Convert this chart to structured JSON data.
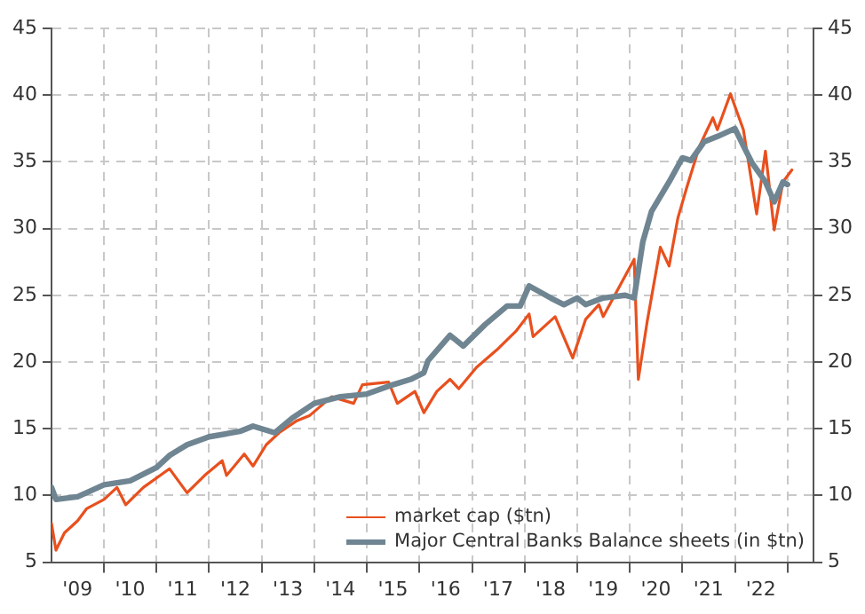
{
  "chart_data": {
    "type": "line",
    "xlim": [
      "2009-01-01",
      "2023-07-01"
    ],
    "xticks": [
      {
        "value": "2009-07-01",
        "label": "'09"
      },
      {
        "value": "2010-01-01",
        "label": null
      },
      {
        "value": "2010-07-01",
        "label": "'10"
      },
      {
        "value": "2011-01-01",
        "label": null
      },
      {
        "value": "2011-07-01",
        "label": "'11"
      },
      {
        "value": "2012-01-01",
        "label": null
      },
      {
        "value": "2012-07-01",
        "label": "'12"
      },
      {
        "value": "2013-01-01",
        "label": null
      },
      {
        "value": "2013-07-01",
        "label": "'13"
      },
      {
        "value": "2014-01-01",
        "label": null
      },
      {
        "value": "2014-07-01",
        "label": "'14"
      },
      {
        "value": "2015-01-01",
        "label": null
      },
      {
        "value": "2015-07-01",
        "label": "'15"
      },
      {
        "value": "2016-01-01",
        "label": null
      },
      {
        "value": "2016-07-01",
        "label": "'16"
      },
      {
        "value": "2017-01-01",
        "label": null
      },
      {
        "value": "2017-07-01",
        "label": "'17"
      },
      {
        "value": "2018-01-01",
        "label": null
      },
      {
        "value": "2018-07-01",
        "label": "'18"
      },
      {
        "value": "2019-01-01",
        "label": null
      },
      {
        "value": "2019-07-01",
        "label": "'19"
      },
      {
        "value": "2020-01-01",
        "label": null
      },
      {
        "value": "2020-07-01",
        "label": "'20"
      },
      {
        "value": "2021-01-01",
        "label": null
      },
      {
        "value": "2021-07-01",
        "label": "'21"
      },
      {
        "value": "2022-01-01",
        "label": null
      },
      {
        "value": "2022-07-01",
        "label": "'22"
      },
      {
        "value": "2023-01-01",
        "label": null
      }
    ],
    "ylim": [
      5,
      45
    ],
    "yticks": [
      5,
      10,
      15,
      20,
      25,
      30,
      35,
      40,
      45
    ],
    "y2lim": [
      5,
      45
    ],
    "y2ticks": [
      5,
      10,
      15,
      20,
      25,
      30,
      35,
      40,
      45
    ],
    "grid": true,
    "legend": "bottom right",
    "marker": "none",
    "line_style": "solid",
    "series": [
      {
        "name": "market cap ($tn)",
        "color": "#e8501e",
        "x": [
          "2009-01",
          "2009-02",
          "2009-04",
          "2009-07",
          "2009-09",
          "2010-01",
          "2010-04",
          "2010-06",
          "2010-10",
          "2011-04",
          "2011-08",
          "2011-12",
          "2012-04",
          "2012-05",
          "2012-09",
          "2012-11",
          "2013-02",
          "2013-05",
          "2013-09",
          "2013-12",
          "2014-05",
          "2014-10",
          "2014-12",
          "2015-06",
          "2015-08",
          "2015-12",
          "2016-02",
          "2016-05",
          "2016-08",
          "2016-10",
          "2017-02",
          "2017-07",
          "2017-11",
          "2018-02",
          "2018-03",
          "2018-08",
          "2018-12",
          "2019-03",
          "2019-06",
          "2019-07",
          "2020-02",
          "2020-03",
          "2020-05",
          "2020-08",
          "2020-10",
          "2020-12",
          "2021-02",
          "2021-05",
          "2021-08",
          "2021-09",
          "2021-12",
          "2022-03",
          "2022-06",
          "2022-08",
          "2022-10",
          "2022-12",
          "2023-02"
        ],
        "values": [
          7.9,
          5.9,
          7.2,
          8.1,
          9.0,
          9.7,
          10.6,
          9.3,
          10.6,
          12.0,
          10.2,
          11.5,
          12.6,
          11.5,
          13.1,
          12.2,
          13.8,
          14.7,
          15.6,
          16.0,
          17.4,
          16.9,
          18.3,
          18.5,
          16.9,
          17.8,
          16.2,
          17.8,
          18.7,
          18.0,
          19.6,
          21.0,
          22.3,
          23.6,
          21.9,
          23.4,
          20.3,
          23.2,
          24.3,
          23.4,
          27.7,
          18.7,
          23.0,
          28.6,
          27.2,
          30.8,
          33.1,
          36.2,
          38.3,
          37.4,
          40.1,
          37.4,
          31.1,
          35.8,
          29.9,
          33.5,
          34.4
        ]
      },
      {
        "name": "Major Central Banks Balance sheets (in $tn)",
        "color": "#6f8592",
        "x": [
          "2009-01",
          "2009-02",
          "2009-07",
          "2010-01",
          "2010-07",
          "2011-01",
          "2011-04",
          "2011-08",
          "2012-01",
          "2012-08",
          "2012-11",
          "2013-04",
          "2013-08",
          "2014-01",
          "2014-07",
          "2015-01",
          "2015-07",
          "2015-11",
          "2016-02",
          "2016-03",
          "2016-08",
          "2016-11",
          "2017-04",
          "2017-09",
          "2017-12",
          "2018-02",
          "2018-07",
          "2018-10",
          "2019-01",
          "2019-03",
          "2019-07",
          "2019-12",
          "2020-02",
          "2020-04",
          "2020-06",
          "2020-10",
          "2021-01",
          "2021-03",
          "2021-06",
          "2021-09",
          "2022-01",
          "2022-03",
          "2022-05",
          "2022-08",
          "2022-10",
          "2022-12",
          "2023-01"
        ],
        "values": [
          10.6,
          9.7,
          9.9,
          10.8,
          11.1,
          12.1,
          13.0,
          13.8,
          14.4,
          14.8,
          15.2,
          14.7,
          15.8,
          16.9,
          17.4,
          17.6,
          18.3,
          18.7,
          19.2,
          20.1,
          22.0,
          21.2,
          22.8,
          24.2,
          24.2,
          25.7,
          24.8,
          24.3,
          24.8,
          24.3,
          24.8,
          25.0,
          24.8,
          29.0,
          31.3,
          33.5,
          35.3,
          35.1,
          36.5,
          36.9,
          37.5,
          36.2,
          34.9,
          33.5,
          32.0,
          33.5,
          33.3
        ]
      }
    ]
  }
}
